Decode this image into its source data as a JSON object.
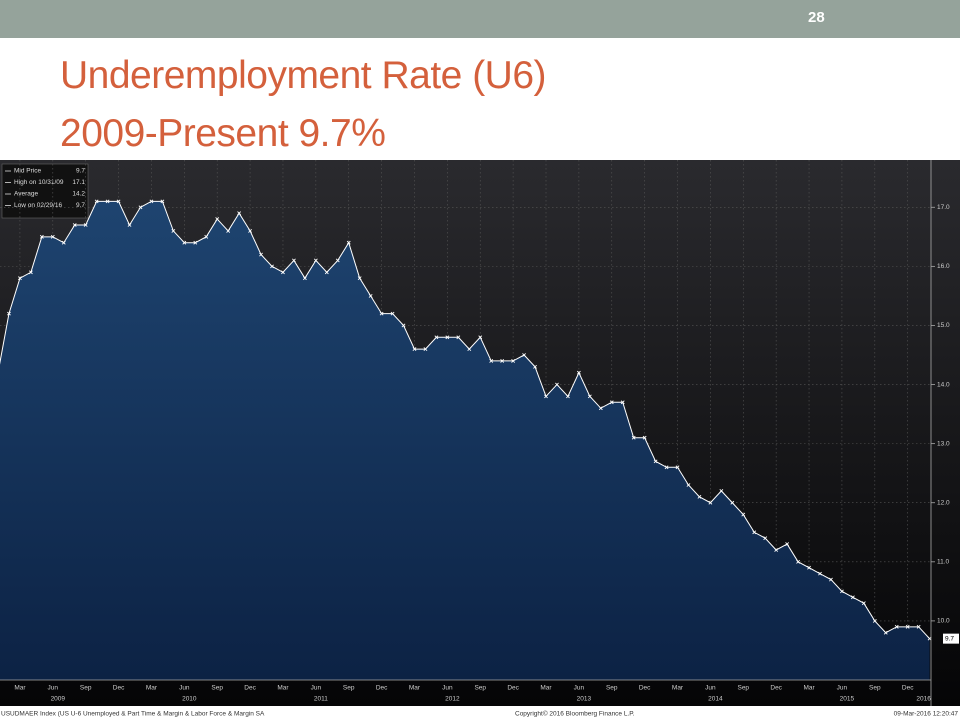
{
  "slide": {
    "page_number": 28,
    "title": [
      "Underemployment Rate (U6)",
      "2009-Present 9.7%"
    ]
  },
  "chart_data": {
    "type": "area",
    "categories": [
      null,
      null,
      "Mar",
      null,
      null,
      "Jun",
      null,
      null,
      "Sep",
      null,
      null,
      "Dec",
      null,
      null,
      "Mar",
      null,
      null,
      "Jun",
      null,
      null,
      "Sep",
      null,
      null,
      "Dec",
      null,
      null,
      "Mar",
      null,
      null,
      "Jun",
      null,
      null,
      "Sep",
      null,
      null,
      "Dec",
      null,
      null,
      "Mar",
      null,
      null,
      "Jun",
      null,
      null,
      "Sep",
      null,
      null,
      "Dec",
      null,
      null,
      "Mar",
      null,
      null,
      "Jun",
      null,
      null,
      "Sep",
      null,
      null,
      "Dec",
      null,
      null,
      "Mar",
      null,
      null,
      "Jun",
      null,
      null,
      "Sep",
      null,
      null,
      "Dec",
      null,
      null,
      "Mar",
      null,
      null,
      "Jun",
      null,
      null,
      "Sep",
      null,
      null,
      "Dec",
      null,
      null
    ],
    "category_groups": [
      null,
      null,
      null,
      null,
      null,
      "2009",
      null,
      null,
      null,
      null,
      null,
      null,
      null,
      null,
      null,
      null,
      null,
      "2010",
      null,
      null,
      null,
      null,
      null,
      null,
      null,
      null,
      null,
      null,
      null,
      "2011",
      null,
      null,
      null,
      null,
      null,
      null,
      null,
      null,
      null,
      null,
      null,
      "2012",
      null,
      null,
      null,
      null,
      null,
      null,
      null,
      null,
      null,
      null,
      null,
      "2013",
      null,
      null,
      null,
      null,
      null,
      null,
      null,
      null,
      null,
      null,
      null,
      "2014",
      null,
      null,
      null,
      null,
      null,
      null,
      null,
      null,
      null,
      null,
      null,
      "2015",
      null,
      null,
      null,
      null,
      null,
      null,
      "2016",
      null
    ],
    "values": [
      14.2,
      15.2,
      15.8,
      15.9,
      16.5,
      16.5,
      16.4,
      16.7,
      16.7,
      17.1,
      17.1,
      17.1,
      16.7,
      17.0,
      17.1,
      17.1,
      16.6,
      16.4,
      16.4,
      16.5,
      16.8,
      16.6,
      16.9,
      16.6,
      16.2,
      16.0,
      15.9,
      16.1,
      15.8,
      16.1,
      15.9,
      16.1,
      16.4,
      15.8,
      15.5,
      15.2,
      15.2,
      15.0,
      14.6,
      14.6,
      14.8,
      14.8,
      14.8,
      14.6,
      14.8,
      14.4,
      14.4,
      14.4,
      14.5,
      14.3,
      13.8,
      14.0,
      13.8,
      14.2,
      13.8,
      13.6,
      13.7,
      13.7,
      13.1,
      13.1,
      12.7,
      12.6,
      12.6,
      12.3,
      12.1,
      12.0,
      12.2,
      12.0,
      11.8,
      11.5,
      11.4,
      11.2,
      11.3,
      11.0,
      10.9,
      10.8,
      10.7,
      10.5,
      10.4,
      10.3,
      10.0,
      9.8,
      9.9,
      9.9,
      9.9,
      9.7
    ],
    "color": "#ffffff",
    "ylim": [
      9.0,
      17.8
    ],
    "yticks": [
      {
        "value": 10,
        "label": "10.0"
      },
      {
        "value": 11,
        "label": "11.0"
      },
      {
        "value": 12,
        "label": "12.0"
      },
      {
        "value": 13,
        "label": "13.0"
      },
      {
        "value": 14,
        "label": "14.0"
      },
      {
        "value": 15,
        "label": "15.0"
      },
      {
        "value": 16,
        "label": "16.0"
      },
      {
        "value": 17,
        "label": "17.0"
      }
    ],
    "grid": true,
    "legend_stats": [
      {
        "label": "Mid Price",
        "value": 9.7
      },
      {
        "label": "High on 10/31/09",
        "value": 17.1
      },
      {
        "label": "Average",
        "value": 14.2
      },
      {
        "label": "Low on 02/29/16",
        "value": 9.7
      }
    ],
    "source": "USUDMAER Index (US U-6 Unemployed & Part Time & Margin & Labor Force & Margin SA",
    "copyright": "Copyright© 2016 Bloomberg Finance L.P.",
    "timestamp": "09-Mar-2016 12:20:47"
  }
}
